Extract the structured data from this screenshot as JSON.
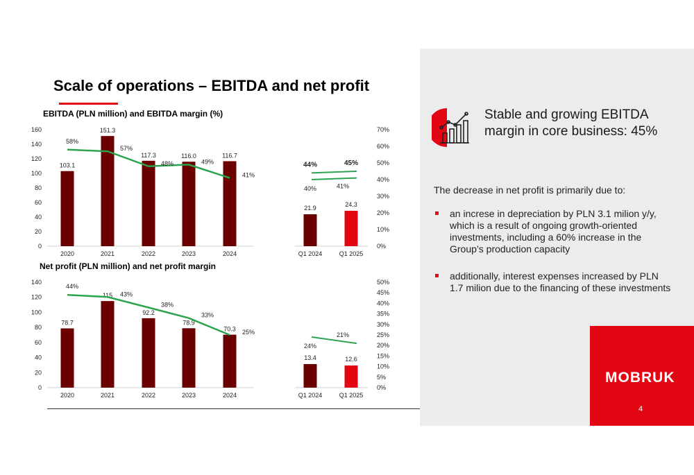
{
  "slide": {
    "title": "Scale of operations – EBITDA and net profit",
    "page_number": "4"
  },
  "panel": {
    "headline": "Stable and growing EBITDA margin in core business: 45%",
    "headline_icon": "growth-chart-icon",
    "intro": "The decrease in net profit is primarily due to:",
    "bullets": [
      "an increse in depreciation by PLN 3.1 milion y/y, which is a result of ongoing growth-oriented investments, including a 60% increase in the Group’s production capacity",
      "additionally, interest expenses increased by PLN 1.7 milion due to the financing of these investments"
    ],
    "logo_text": "MOBRUK",
    "colors": {
      "accent": "#e30613",
      "panel": "#ececec"
    }
  },
  "chart_data": [
    {
      "type": "bar",
      "title": "EBITDA (PLN million) and EBITDA margin (%)",
      "categories": [
        "2020",
        "2021",
        "2022",
        "2023",
        "2024"
      ],
      "values": [
        103.1,
        151.3,
        117.3,
        116.0,
        116.7
      ],
      "value_labels": [
        "103.1",
        "151.3",
        "117.3",
        "116.0",
        "116.7"
      ],
      "margin": [
        58,
        57,
        48,
        49,
        41
      ],
      "margin_labels": [
        "58%",
        "57%",
        "48%",
        "49%",
        "41%"
      ],
      "ylim": [
        0,
        160
      ],
      "yticks": [
        "0",
        "20",
        "40",
        "60",
        "80",
        "100",
        "120",
        "140",
        "160"
      ],
      "y2lim": [
        0,
        70
      ],
      "y2ticks": [
        "0%",
        "10%",
        "20%",
        "30%",
        "40%",
        "50%",
        "60%",
        "70%"
      ],
      "bar_color": "#6b0000",
      "line_color": "#2ca44e",
      "grid": false
    },
    {
      "type": "bar",
      "categories": [
        "Q1 2024",
        "Q1 2025"
      ],
      "values": [
        21.9,
        24.3
      ],
      "value_labels": [
        "21.9",
        "24.3"
      ],
      "margin": [
        40,
        41
      ],
      "margin_labels": [
        "40%",
        "41%"
      ],
      "core_margin": [
        44,
        45
      ],
      "core_margin_labels": [
        "44%",
        "45%"
      ],
      "y2lim": [
        0,
        70
      ],
      "bar_colors": [
        "#6b0000",
        "#e30613"
      ],
      "line_color": "#2ca44e"
    },
    {
      "type": "bar",
      "title": "Net profit (PLN million) and net profit margin",
      "categories": [
        "2020",
        "2021",
        "2022",
        "2023",
        "2024"
      ],
      "values": [
        78.7,
        115,
        92.2,
        78.9,
        70.3
      ],
      "value_labels": [
        "78.7",
        "115",
        "92.2",
        "78.9",
        "70.3"
      ],
      "margin": [
        44,
        43,
        38,
        33,
        25
      ],
      "margin_labels": [
        "44%",
        "43%",
        "38%",
        "33%",
        "25%"
      ],
      "ylim": [
        0,
        140
      ],
      "yticks": [
        "0",
        "20",
        "40",
        "60",
        "80",
        "100",
        "120",
        "140"
      ],
      "y2lim": [
        0,
        50
      ],
      "y2ticks": [
        "0%",
        "5%",
        "10%",
        "15%",
        "20%",
        "25%",
        "30%",
        "35%",
        "40%",
        "45%",
        "50%"
      ],
      "bar_color": "#6b0000",
      "line_color": "#2ca44e",
      "grid": false
    },
    {
      "type": "bar",
      "categories": [
        "Q1 2024",
        "Q1 2025"
      ],
      "values": [
        13.4,
        12.6
      ],
      "value_labels": [
        "13.4",
        "12.6"
      ],
      "margin": [
        24,
        21
      ],
      "margin_labels": [
        "24%",
        "21%"
      ],
      "y2lim": [
        0,
        50
      ],
      "bar_colors": [
        "#6b0000",
        "#e30613"
      ],
      "line_color": "#2ca44e"
    }
  ]
}
